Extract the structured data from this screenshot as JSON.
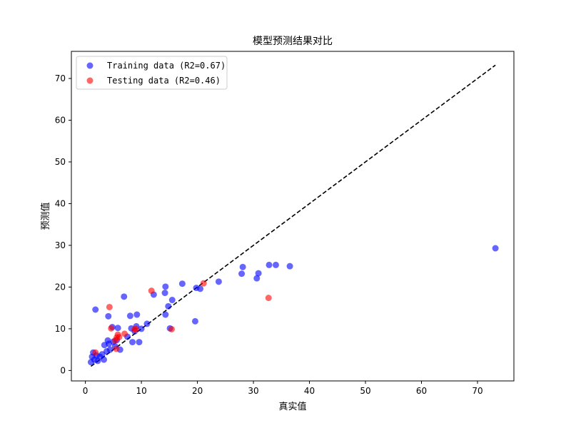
{
  "chart_data": {
    "type": "scatter",
    "title": "模型预测结果对比",
    "xlabel": "真实值",
    "ylabel": "预测值",
    "xlim": [
      -2.5,
      76.5
    ],
    "ylim": [
      -2.5,
      76.5
    ],
    "xticks": [
      0,
      10,
      20,
      30,
      40,
      50,
      60,
      70
    ],
    "yticks": [
      0,
      10,
      20,
      30,
      40,
      50,
      60,
      70
    ],
    "grid": false,
    "legend_position": "top-left",
    "reference_line": {
      "x": [
        1,
        73.2
      ],
      "y": [
        1,
        73.2
      ],
      "style": "dashed",
      "color": "#000000"
    },
    "series": [
      {
        "name": "Training data (R2=0.67)",
        "color": "#0000ff",
        "points": [
          [
            1.0,
            2.0
          ],
          [
            1.2,
            3.3
          ],
          [
            1.4,
            4.3
          ],
          [
            1.6,
            2.6
          ],
          [
            1.8,
            14.6
          ],
          [
            2.0,
            3.6
          ],
          [
            2.2,
            2.3
          ],
          [
            2.6,
            3.3
          ],
          [
            3.0,
            3.9
          ],
          [
            3.3,
            2.6
          ],
          [
            3.4,
            6.1
          ],
          [
            3.8,
            4.6
          ],
          [
            4.0,
            7.2
          ],
          [
            4.2,
            6.4
          ],
          [
            4.1,
            13.0
          ],
          [
            4.4,
            5.0
          ],
          [
            4.8,
            10.4
          ],
          [
            5.0,
            6.9
          ],
          [
            5.3,
            5.8
          ],
          [
            5.6,
            7.3
          ],
          [
            5.8,
            10.2
          ],
          [
            6.2,
            5.0
          ],
          [
            6.9,
            17.7
          ],
          [
            7.5,
            8.1
          ],
          [
            8.0,
            13.1
          ],
          [
            8.2,
            10.1
          ],
          [
            8.4,
            6.8
          ],
          [
            8.8,
            9.4
          ],
          [
            9.1,
            10.6
          ],
          [
            9.2,
            13.4
          ],
          [
            9.6,
            6.8
          ],
          [
            10.0,
            10.0
          ],
          [
            11.0,
            11.2
          ],
          [
            12.2,
            18.2
          ],
          [
            14.2,
            18.6
          ],
          [
            14.3,
            20.1
          ],
          [
            14.3,
            13.4
          ],
          [
            14.8,
            15.4
          ],
          [
            15.1,
            10.1
          ],
          [
            15.5,
            16.9
          ],
          [
            17.3,
            20.8
          ],
          [
            19.6,
            11.8
          ],
          [
            19.8,
            19.8
          ],
          [
            20.5,
            19.6
          ],
          [
            23.8,
            21.3
          ],
          [
            27.9,
            23.2
          ],
          [
            28.1,
            24.8
          ],
          [
            30.6,
            22.1
          ],
          [
            30.9,
            23.3
          ],
          [
            32.8,
            25.3
          ],
          [
            34.0,
            25.3
          ],
          [
            36.5,
            25.0
          ],
          [
            73.2,
            29.3
          ]
        ]
      },
      {
        "name": "Testing data (R2=0.46)",
        "color": "#ff0000",
        "points": [
          [
            1.8,
            4.3
          ],
          [
            4.3,
            15.2
          ],
          [
            4.6,
            10.1
          ],
          [
            5.3,
            7.2
          ],
          [
            5.5,
            5.2
          ],
          [
            5.6,
            7.9
          ],
          [
            5.8,
            8.6
          ],
          [
            6.0,
            8.0
          ],
          [
            7.0,
            8.8
          ],
          [
            8.8,
            9.8
          ],
          [
            9.0,
            10.0
          ],
          [
            11.8,
            19.1
          ],
          [
            15.4,
            9.9
          ],
          [
            21.1,
            20.9
          ],
          [
            32.7,
            17.4
          ]
        ]
      }
    ]
  }
}
